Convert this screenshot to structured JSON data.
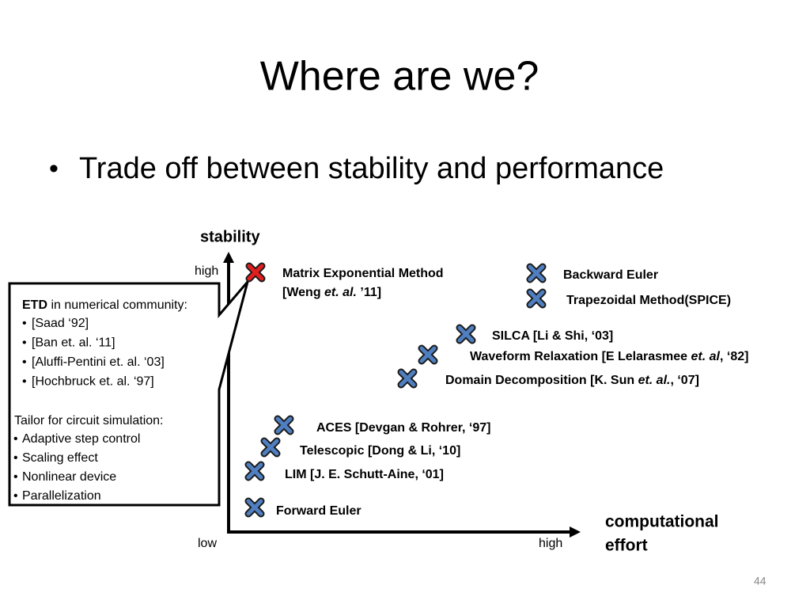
{
  "title": "Where are we?",
  "bullet": "Trade off between stability and performance",
  "axes": {
    "y_label": "stability",
    "y_high": "high",
    "x_low": "low",
    "x_high": "high",
    "x_label": [
      "computational",
      "effort"
    ]
  },
  "methods": [
    {
      "lines": [
        [
          "Matrix Exponential Method"
        ],
        [
          "[Weng ",
          "et. al.",
          " ’11]"
        ]
      ],
      "color": "#e02020"
    },
    {
      "lines": [
        [
          "Backward Euler"
        ]
      ],
      "color": "#4f7fc0"
    },
    {
      "lines": [
        [
          "Trapezoidal Method(SPICE)"
        ]
      ],
      "color": "#4f7fc0"
    },
    {
      "lines": [
        [
          "SILCA [Li & Shi, ‘03]"
        ]
      ],
      "color": "#4f7fc0"
    },
    {
      "lines": [
        [
          "Waveform Relaxation [E Lelarasmee ",
          "et. al",
          ", ‘82]"
        ]
      ],
      "color": "#4f7fc0"
    },
    {
      "lines": [
        [
          "Domain Decomposition [K. Sun ",
          "et. al.",
          ", ‘07]"
        ]
      ],
      "color": "#4f7fc0"
    },
    {
      "lines": [
        [
          "ACES [Devgan & Rohrer, ‘97]"
        ]
      ],
      "color": "#4f7fc0"
    },
    {
      "lines": [
        [
          "Telescopic [Dong & Li, ‘10]"
        ]
      ],
      "color": "#4f7fc0"
    },
    {
      "lines": [
        [
          "LIM [J. E. Schutt-Aine, ‘01]"
        ]
      ],
      "color": "#4f7fc0"
    },
    {
      "lines": [
        [
          "Forward Euler"
        ]
      ],
      "color": "#4f7fc0"
    }
  ],
  "callout": {
    "heading": [
      "ETD",
      " in numerical community:"
    ],
    "refs": [
      "[Saad ‘92]",
      "[Ban et. al. ‘11]",
      "[Aluffi-Pentini et. al. ‘03]",
      "[Hochbruck et. al. ‘97]"
    ],
    "subheading": "Tailor for circuit simulation:",
    "items": [
      "Adaptive step control",
      "Scaling effect",
      "Nonlinear device",
      "Parallelization"
    ]
  },
  "page_number": "44"
}
